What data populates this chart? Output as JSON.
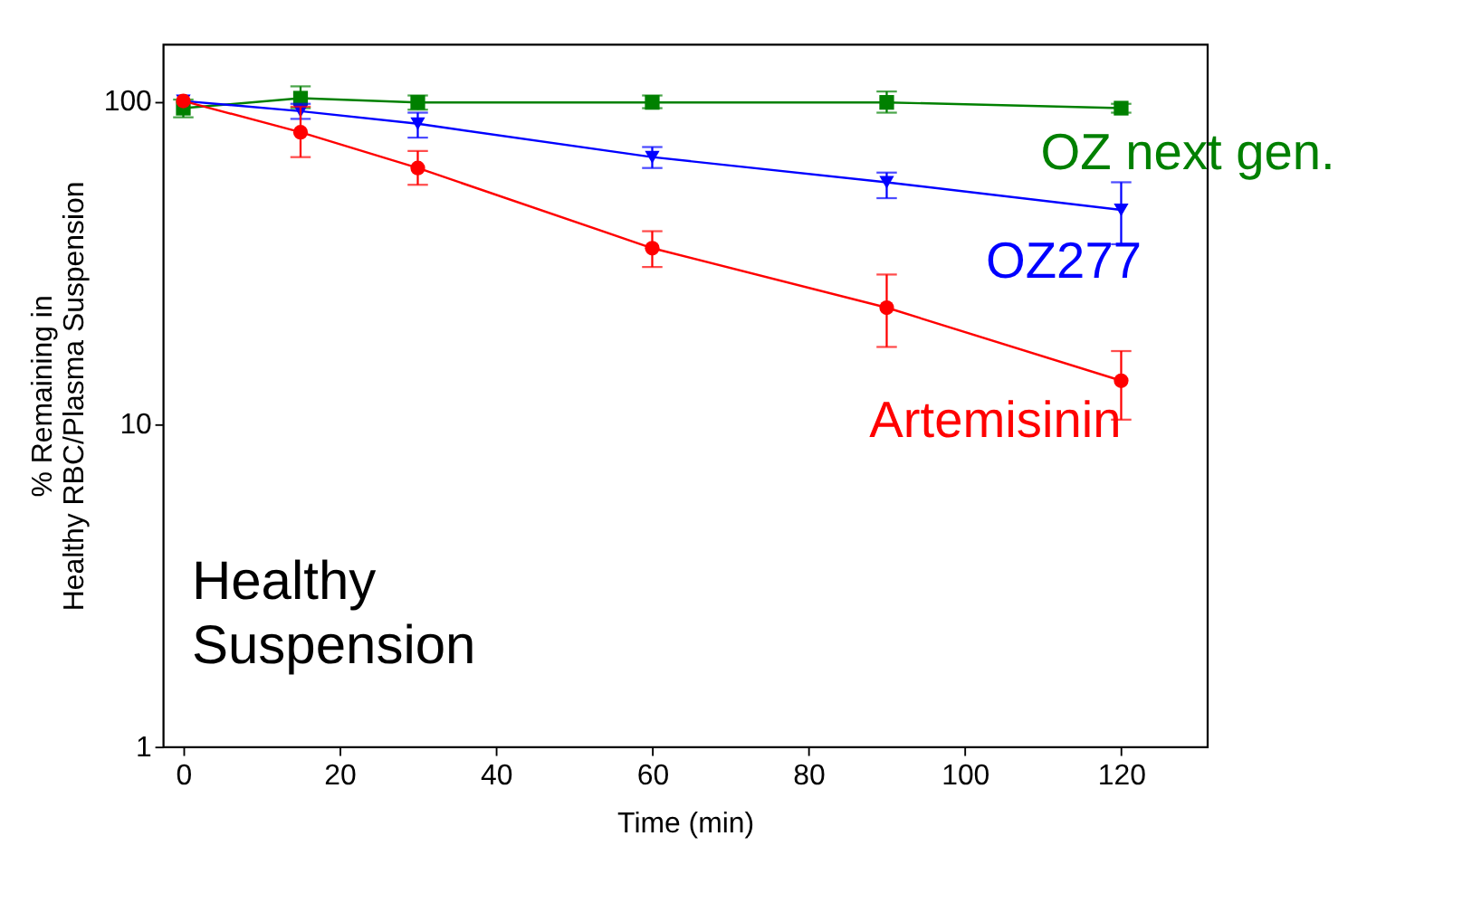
{
  "chart_data": {
    "type": "line",
    "xlabel": "Time (min)",
    "ylabel": "% Remaining in\nHealthy RBC/Plasma Suspension",
    "x": [
      0,
      15,
      30,
      60,
      90,
      120
    ],
    "series": [
      {
        "name": "OZ next gen.",
        "color": "#008000",
        "marker": "square",
        "values": [
          95,
          102,
          99,
          99,
          99,
          95
        ],
        "errors": [
          [
            89,
            101
          ],
          [
            95,
            111
          ],
          [
            94,
            104
          ],
          [
            95,
            104
          ],
          [
            92,
            107
          ],
          [
            92,
            98
          ]
        ]
      },
      {
        "name": "OZ277",
        "color": "#0000ff",
        "marker": "triangle",
        "values": [
          100,
          93,
          85,
          67,
          56,
          46
        ],
        "errors": [
          null,
          [
            88,
            98
          ],
          [
            77,
            92
          ],
          [
            62,
            72
          ],
          [
            50,
            60
          ],
          [
            36,
            56
          ]
        ]
      },
      {
        "name": "Artemisinin",
        "color": "#ff0000",
        "marker": "circle",
        "values": [
          100,
          80,
          62,
          35,
          22.9,
          13.6
        ],
        "errors": [
          null,
          [
            67,
            96
          ],
          [
            55,
            70
          ],
          [
            30.6,
            39.5
          ],
          [
            17.3,
            29
          ],
          [
            10.3,
            16.8
          ]
        ]
      }
    ],
    "log": true,
    "xlim": [
      -2.6,
      131
    ],
    "ylim": [
      1,
      150
    ],
    "xticks": [
      0,
      20,
      40,
      60,
      80,
      100,
      120
    ],
    "yticks": [
      1,
      10,
      100
    ],
    "grid": false,
    "line_style": "solid",
    "annotations": [
      "Healthy\nSuspension"
    ]
  }
}
